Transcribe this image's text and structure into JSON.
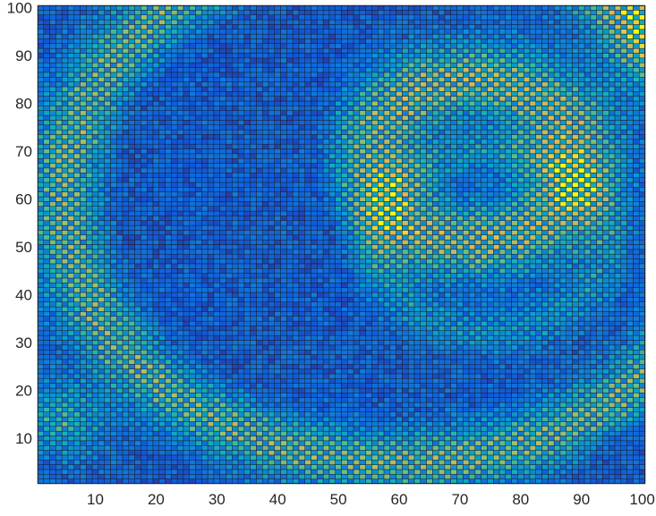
{
  "chart_data": {
    "type": "heatmap",
    "title": "",
    "xlabel": "",
    "ylabel": "",
    "xlim": [
      1,
      100
    ],
    "ylim": [
      1,
      100
    ],
    "x_ticks": [
      "10",
      "20",
      "30",
      "40",
      "50",
      "60",
      "70",
      "80",
      "90",
      "100"
    ],
    "y_ticks": [
      "10",
      "20",
      "30",
      "40",
      "50",
      "60",
      "70",
      "80",
      "90",
      "100"
    ],
    "grid": false,
    "colormap": "parula",
    "value_range": [
      0,
      1
    ],
    "colors": {
      "edge": "#1a1a1a",
      "axis": "#262626",
      "background": "#ffffff"
    },
    "structure": {
      "grid_size": [
        100,
        100
      ],
      "checkerboard": true,
      "ridges": [
        {
          "cx": 72,
          "cy": 68,
          "r": 17,
          "width": 8,
          "strength": 0.78
        },
        {
          "cx": 75,
          "cy": 51,
          "r": 19,
          "width": 4.5,
          "strength": 0.34
        },
        {
          "cx": 60,
          "cy": 60,
          "r": 55,
          "width": 6.5,
          "strength": 0.7
        }
      ],
      "blobs": [
        {
          "cx": 5,
          "cy": 14,
          "sx": 7,
          "sy": 8,
          "strength": 0.55
        },
        {
          "cx": 99,
          "cy": 92,
          "sx": 7,
          "sy": 10,
          "strength": 0.45
        }
      ],
      "quiet_regions": [
        {
          "cx": 33,
          "cy": 60,
          "sx": 14,
          "sy": 26,
          "strength": 0.65
        },
        {
          "cx": 98,
          "cy": 6,
          "sx": 5,
          "sy": 5,
          "strength": 0.6
        }
      ]
    }
  }
}
